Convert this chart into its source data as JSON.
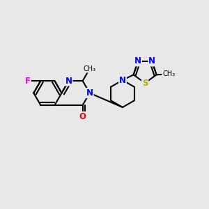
{
  "bg_color": "#e8e8e8",
  "bond_color": "#000000",
  "bond_width": 1.5,
  "atom_colors": {
    "N": "#0000ff",
    "O": "#ff0000",
    "F": "#ff00ee",
    "S": "#bbaa00",
    "C": "#000000"
  },
  "font_size_atom": 8.5
}
